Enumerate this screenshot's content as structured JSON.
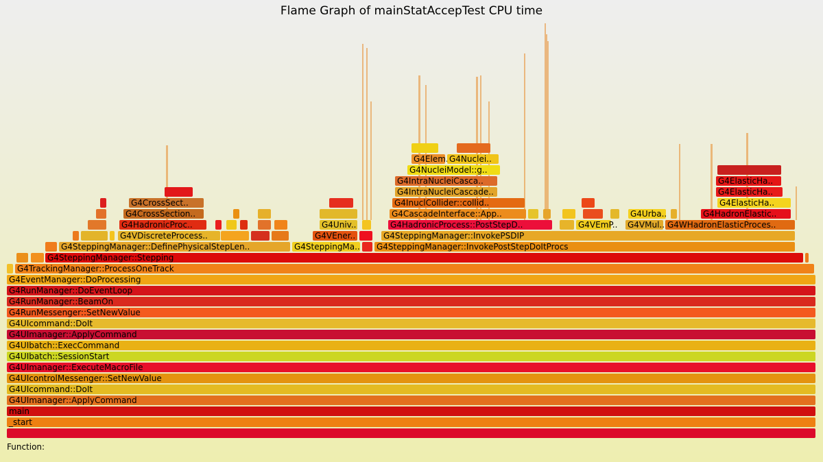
{
  "chart_data": {
    "type": "flamegraph",
    "title": "Flame Graph of mainStatAccepTest CPU time",
    "details_label": "Function:",
    "frames": [
      {
        "d": 0,
        "s": 0,
        "w": 1180,
        "n": "",
        "c": "#dc0a2a"
      },
      {
        "d": 1,
        "s": 0,
        "w": 1180,
        "n": "_start",
        "c": "#ee8011"
      },
      {
        "d": 2,
        "s": 0,
        "w": 1180,
        "n": "main",
        "c": "#d00f0f"
      },
      {
        "d": 3,
        "s": 0,
        "w": 1180,
        "n": "G4UImanager::ApplyCommand",
        "c": "#e3701e"
      },
      {
        "d": 4,
        "s": 0,
        "w": 1180,
        "n": "G4UIcommand::DoIt",
        "c": "#e4bb22"
      },
      {
        "d": 5,
        "s": 0,
        "w": 1180,
        "n": "G4UIcontrolMessenger::SetNewValue",
        "c": "#e49310"
      },
      {
        "d": 6,
        "s": 0,
        "w": 1180,
        "n": "G4UImanager::ExecuteMacroFile",
        "c": "#e8102a"
      },
      {
        "d": 7,
        "s": 0,
        "w": 1180,
        "n": "G4UIbatch::SessionStart",
        "c": "#ccd622"
      },
      {
        "d": 8,
        "s": 0,
        "w": 1180,
        "n": "G4UIbatch::ExecCommand",
        "c": "#e9b114"
      },
      {
        "d": 9,
        "s": 0,
        "w": 1180,
        "n": "G4UImanager::ApplyCommand",
        "c": "#c80f32"
      },
      {
        "d": 10,
        "s": 0,
        "w": 1180,
        "n": "G4UIcommand::DoIt",
        "c": "#e6ba2c"
      },
      {
        "d": 11,
        "s": 0,
        "w": 1180,
        "n": "G4RunMessenger::SetNewValue",
        "c": "#f45a1e"
      },
      {
        "d": 12,
        "s": 0,
        "w": 1180,
        "n": "G4RunManager::BeamOn",
        "c": "#d92a1e"
      },
      {
        "d": 13,
        "s": 0,
        "w": 1180,
        "n": "G4RunManager::DoEventLoop",
        "c": "#d4141a"
      },
      {
        "d": 14,
        "s": 0,
        "w": 1180,
        "n": "G4EventManager::DoProcessing",
        "c": "#f0a514"
      },
      {
        "d": 15,
        "s": 0,
        "w": 10,
        "n": "",
        "c": "#f2c02a"
      },
      {
        "d": 15,
        "s": 12,
        "w": 1166,
        "n": "G4TrackingManager::ProcessOneTrack",
        "c": "#f08218"
      },
      {
        "d": 16,
        "s": 14,
        "w": 18,
        "n": "",
        "c": "#eb8f1a"
      },
      {
        "d": 16,
        "s": 35,
        "w": 20,
        "n": "",
        "c": "#f2901e"
      },
      {
        "d": 16,
        "s": 56,
        "w": 1106,
        "n": "G4SteppingManager::Stepping",
        "c": "#dc0a0a"
      },
      {
        "d": 16,
        "s": 1164,
        "w": 6,
        "n": "",
        "c": "#ec7818"
      },
      {
        "d": 17,
        "s": 56,
        "w": 18,
        "n": "",
        "c": "#f07c1c"
      },
      {
        "d": 17,
        "s": 76,
        "w": 338,
        "n": "G4SteppingManager::DefinePhysicalStepLen..",
        "c": "#e5a62a"
      },
      {
        "d": 17,
        "s": 416,
        "w": 100,
        "n": "G4SteppingMa..",
        "c": "#f0cf1f"
      },
      {
        "d": 17,
        "s": 518,
        "w": 16,
        "n": "",
        "c": "#e9261e"
      },
      {
        "d": 17,
        "s": 536,
        "w": 614,
        "n": "G4SteppingManager::InvokePostStepDoItProcs",
        "c": "#ea8f13"
      },
      {
        "d": 18,
        "s": 96,
        "w": 10,
        "n": "",
        "c": "#ec7a1c"
      },
      {
        "d": 18,
        "s": 108,
        "w": 40,
        "n": "",
        "c": "#e3b42a"
      },
      {
        "d": 18,
        "s": 150,
        "w": 8,
        "n": "",
        "c": "#f4c41e"
      },
      {
        "d": 18,
        "s": 162,
        "w": 150,
        "n": "G4VDiscreteProcess..",
        "c": "#e6b42a"
      },
      {
        "d": 18,
        "s": 312,
        "w": 42,
        "n": "",
        "c": "#f4a41e"
      },
      {
        "d": 18,
        "s": 356,
        "w": 28,
        "n": "",
        "c": "#d5301e"
      },
      {
        "d": 18,
        "s": 386,
        "w": 26,
        "n": "",
        "c": "#e67a1a"
      },
      {
        "d": 18,
        "s": 446,
        "w": 66,
        "n": "G4VEner..",
        "c": "#e4520f"
      },
      {
        "d": 18,
        "s": 514,
        "w": 20,
        "n": "",
        "c": "#ee1020"
      },
      {
        "d": 18,
        "s": 546,
        "w": 604,
        "n": "G4SteppingManager::InvokePSDIP",
        "c": "#e7a826"
      },
      {
        "d": 19,
        "s": 118,
        "w": 28,
        "n": "",
        "c": "#e2782a"
      },
      {
        "d": 19,
        "s": 164,
        "w": 128,
        "n": "G4HadronicProc..",
        "c": "#e02c12"
      },
      {
        "d": 19,
        "s": 304,
        "w": 10,
        "n": "",
        "c": "#ea1e1e"
      },
      {
        "d": 19,
        "s": 320,
        "w": 16,
        "n": "",
        "c": "#f0c81a"
      },
      {
        "d": 19,
        "s": 340,
        "w": 12,
        "n": "",
        "c": "#dd2e10"
      },
      {
        "d": 19,
        "s": 366,
        "w": 20,
        "n": "",
        "c": "#e2722a"
      },
      {
        "d": 19,
        "s": 390,
        "w": 20,
        "n": "",
        "c": "#f0841a"
      },
      {
        "d": 19,
        "s": 456,
        "w": 56,
        "n": "G4Univ..",
        "c": "#e3c02a"
      },
      {
        "d": 19,
        "s": 518,
        "w": 14,
        "n": "",
        "c": "#f4c41e"
      },
      {
        "d": 19,
        "s": 556,
        "w": 240,
        "n": "G4HadronicProcess::PostStepD..",
        "c": "#ec0f3a"
      },
      {
        "d": 19,
        "s": 806,
        "w": 22,
        "n": "",
        "c": "#e7b42a"
      },
      {
        "d": 19,
        "s": 830,
        "w": 52,
        "n": "G4VEmP..",
        "c": "#f0cc1e"
      },
      {
        "d": 19,
        "s": 902,
        "w": 56,
        "n": "G4VMul..",
        "c": "#e2aa2a"
      },
      {
        "d": 19,
        "s": 960,
        "w": 190,
        "n": "G4WHadronElasticProces..",
        "c": "#e06a12"
      },
      {
        "d": 20,
        "s": 130,
        "w": 16,
        "n": "",
        "c": "#e2712a"
      },
      {
        "d": 20,
        "s": 170,
        "w": 118,
        "n": "G4CrossSection..",
        "c": "#c46a1e"
      },
      {
        "d": 20,
        "s": 330,
        "w": 10,
        "n": "",
        "c": "#ea9012"
      },
      {
        "d": 20,
        "s": 366,
        "w": 20,
        "n": "",
        "c": "#e6b02a"
      },
      {
        "d": 20,
        "s": 456,
        "w": 56,
        "n": "",
        "c": "#e2b82a"
      },
      {
        "d": 20,
        "s": 558,
        "w": 200,
        "n": "G4CascadeInterface::App..",
        "c": "#ec8c1c"
      },
      {
        "d": 20,
        "s": 760,
        "w": 16,
        "n": "",
        "c": "#e6c42a"
      },
      {
        "d": 20,
        "s": 782,
        "w": 12,
        "n": "",
        "c": "#e6a42a"
      },
      {
        "d": 20,
        "s": 810,
        "w": 20,
        "n": "",
        "c": "#f2c41e"
      },
      {
        "d": 20,
        "s": 840,
        "w": 30,
        "n": "",
        "c": "#ea4e1e"
      },
      {
        "d": 20,
        "s": 880,
        "w": 14,
        "n": "",
        "c": "#e4b82a"
      },
      {
        "d": 20,
        "s": 906,
        "w": 56,
        "n": "G4Urba..",
        "c": "#f4d01e"
      },
      {
        "d": 20,
        "s": 968,
        "w": 10,
        "n": "",
        "c": "#e6b02a"
      },
      {
        "d": 20,
        "s": 1012,
        "w": 132,
        "n": "G4HadronElastic..",
        "c": "#e5101a"
      },
      {
        "d": 21,
        "s": 136,
        "w": 10,
        "n": "",
        "c": "#dc1e1e"
      },
      {
        "d": 21,
        "s": 178,
        "w": 110,
        "n": "G4CrossSect..",
        "c": "#c8722a"
      },
      {
        "d": 21,
        "s": 470,
        "w": 36,
        "n": "",
        "c": "#e62e1e"
      },
      {
        "d": 21,
        "s": 562,
        "w": 194,
        "n": "G4InuclCollider::collid..",
        "c": "#e46a12"
      },
      {
        "d": 21,
        "s": 838,
        "w": 20,
        "n": "",
        "c": "#ec4818"
      },
      {
        "d": 21,
        "s": 1036,
        "w": 108,
        "n": "G4ElasticHa..",
        "c": "#f4d41e"
      },
      {
        "d": 22,
        "s": 230,
        "w": 42,
        "n": "",
        "c": "#e2181a"
      },
      {
        "d": 22,
        "s": 566,
        "w": 150,
        "n": "G4IntraNucleiCascade..",
        "c": "#e2a42a"
      },
      {
        "d": 22,
        "s": 1034,
        "w": 98,
        "n": "G4ElasticHa..",
        "c": "#e81a1a"
      },
      {
        "d": 23,
        "s": 566,
        "w": 150,
        "n": "G4IntraNucleiCasca..",
        "c": "#dc6a2a"
      },
      {
        "d": 23,
        "s": 1034,
        "w": 96,
        "n": "G4ElasticHa..",
        "c": "#e41616"
      },
      {
        "d": 24,
        "s": 584,
        "w": 136,
        "n": "G4NucleiModel::g..",
        "c": "#f0dc14"
      },
      {
        "d": 24,
        "s": 1036,
        "w": 94,
        "n": "",
        "c": "#c8201e"
      },
      {
        "d": 25,
        "s": 590,
        "w": 50,
        "n": "G4Elem..",
        "c": "#ec8e2a"
      },
      {
        "d": 25,
        "s": 642,
        "w": 76,
        "n": "G4Nuclei..",
        "c": "#f0c418"
      },
      {
        "d": 26,
        "s": 590,
        "w": 40,
        "n": "",
        "c": "#f0d014"
      },
      {
        "d": 26,
        "s": 656,
        "w": 50,
        "n": "",
        "c": "#e46a1e"
      }
    ]
  }
}
